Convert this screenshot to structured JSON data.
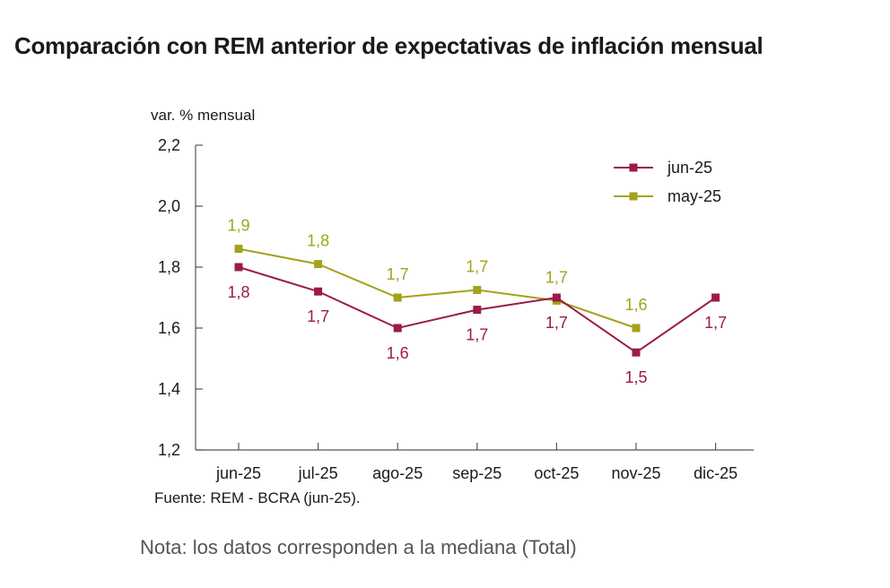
{
  "title": "Comparación con REM anterior de expectativas de inflación mensual",
  "source": "Fuente: REM - BCRA (jun-25).",
  "note": "Nota: los datos corresponden a la mediana (Total)",
  "colors": {
    "jun25": "#9b1b4a",
    "may25": "#a3a21c",
    "axis": "#555555"
  },
  "chart_data": {
    "type": "line",
    "ylabel": "var. % mensual",
    "ylim": [
      1.2,
      2.2
    ],
    "yticks": [
      1.2,
      1.4,
      1.6,
      1.8,
      2.0,
      2.2
    ],
    "ytick_labels": [
      "1,2",
      "1,4",
      "1,6",
      "1,8",
      "2,0",
      "2,2"
    ],
    "categories": [
      "jun-25",
      "jul-25",
      "ago-25",
      "sep-25",
      "oct-25",
      "nov-25",
      "dic-25"
    ],
    "legend_position": "top-right",
    "grid": false,
    "series": [
      {
        "name": "jun-25",
        "color": "#9b1b4a",
        "label_position": "below",
        "values": [
          1.8,
          1.72,
          1.6,
          1.66,
          1.7,
          1.52,
          1.7
        ],
        "labels": [
          "1,8",
          "1,7",
          "1,6",
          "1,7",
          "1,7",
          "1,5",
          "1,7"
        ]
      },
      {
        "name": "may-25",
        "color": "#a3a21c",
        "label_position": "above",
        "values": [
          1.86,
          1.81,
          1.7,
          1.725,
          1.69,
          1.6,
          null
        ],
        "labels": [
          "1,9",
          "1,8",
          "1,7",
          "1,7",
          "1,7",
          "1,6",
          null
        ]
      }
    ]
  }
}
